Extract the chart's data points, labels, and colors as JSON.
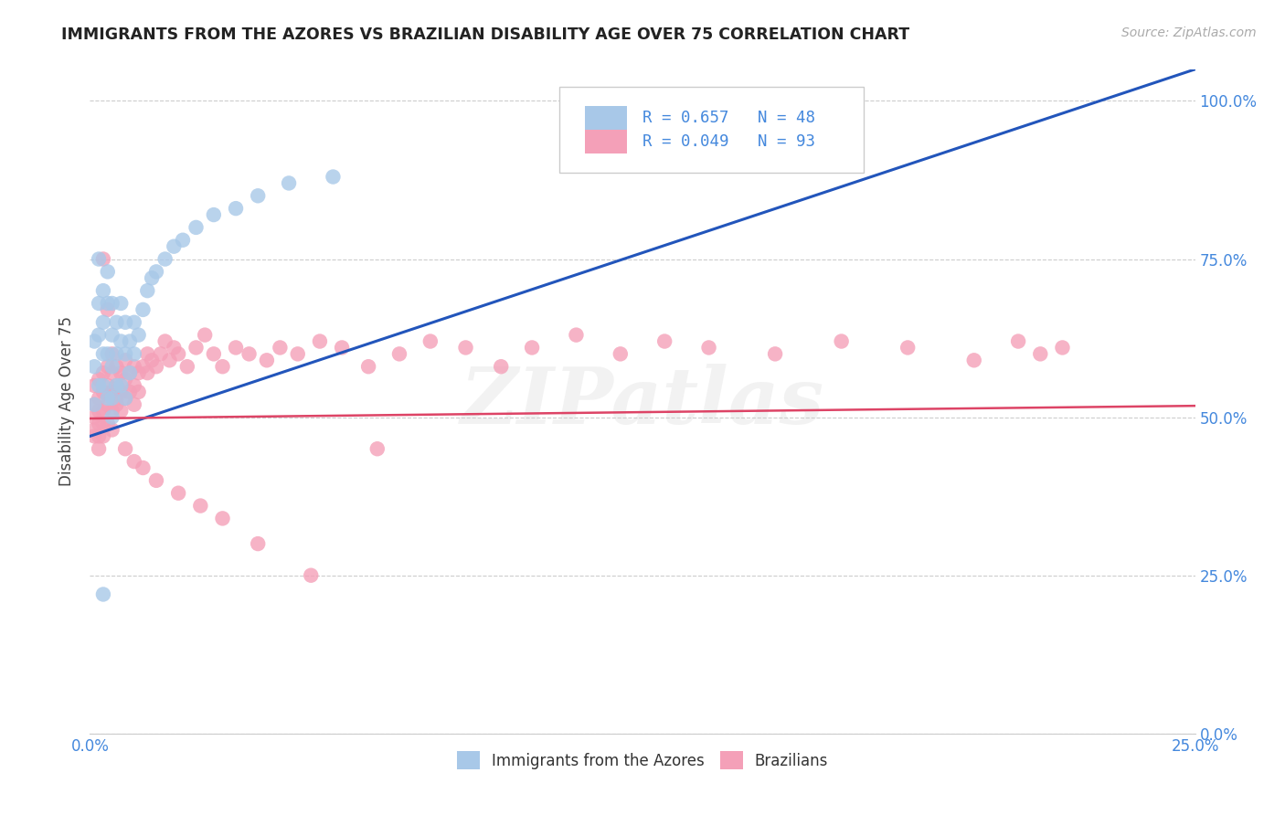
{
  "title": "IMMIGRANTS FROM THE AZORES VS BRAZILIAN DISABILITY AGE OVER 75 CORRELATION CHART",
  "source": "Source: ZipAtlas.com",
  "ylabel": "Disability Age Over 75",
  "legend_label1": "Immigrants from the Azores",
  "legend_label2": "Brazilians",
  "R1": 0.657,
  "N1": 48,
  "R2": 0.049,
  "N2": 93,
  "color1": "#a8c8e8",
  "color2": "#f4a0b8",
  "trendline1_color": "#2255bb",
  "trendline2_color": "#dd4466",
  "watermark": "ZIPatlas",
  "grid_color": "#cccccc",
  "title_color": "#222222",
  "axis_color": "#4488dd",
  "source_color": "#aaaaaa",
  "xlim": [
    0.0,
    0.25
  ],
  "ylim": [
    0.0,
    1.05
  ],
  "xtick_positions": [
    0.0,
    0.25
  ],
  "xtick_labels": [
    "0.0%",
    "25.0%"
  ],
  "ytick_positions": [
    0.0,
    0.25,
    0.5,
    0.75,
    1.0
  ],
  "ytick_labels": [
    "0.0%",
    "25.0%",
    "50.0%",
    "75.0%",
    "100.0%"
  ],
  "azores_x": [
    0.001,
    0.001,
    0.001,
    0.002,
    0.002,
    0.002,
    0.002,
    0.003,
    0.003,
    0.003,
    0.003,
    0.004,
    0.004,
    0.004,
    0.004,
    0.005,
    0.005,
    0.005,
    0.005,
    0.005,
    0.006,
    0.006,
    0.006,
    0.007,
    0.007,
    0.007,
    0.008,
    0.008,
    0.008,
    0.009,
    0.009,
    0.01,
    0.01,
    0.011,
    0.012,
    0.013,
    0.014,
    0.015,
    0.017,
    0.019,
    0.021,
    0.024,
    0.028,
    0.033,
    0.038,
    0.045,
    0.055,
    0.003
  ],
  "azores_y": [
    0.62,
    0.58,
    0.52,
    0.75,
    0.68,
    0.63,
    0.55,
    0.7,
    0.65,
    0.6,
    0.55,
    0.73,
    0.68,
    0.6,
    0.53,
    0.68,
    0.63,
    0.58,
    0.53,
    0.5,
    0.65,
    0.6,
    0.55,
    0.68,
    0.62,
    0.55,
    0.65,
    0.6,
    0.53,
    0.62,
    0.57,
    0.65,
    0.6,
    0.63,
    0.67,
    0.7,
    0.72,
    0.73,
    0.75,
    0.77,
    0.78,
    0.8,
    0.82,
    0.83,
    0.85,
    0.87,
    0.88,
    0.22
  ],
  "brazil_x": [
    0.001,
    0.001,
    0.001,
    0.001,
    0.001,
    0.002,
    0.002,
    0.002,
    0.002,
    0.002,
    0.002,
    0.003,
    0.003,
    0.003,
    0.003,
    0.003,
    0.004,
    0.004,
    0.004,
    0.004,
    0.005,
    0.005,
    0.005,
    0.005,
    0.005,
    0.006,
    0.006,
    0.006,
    0.007,
    0.007,
    0.007,
    0.008,
    0.008,
    0.008,
    0.009,
    0.009,
    0.01,
    0.01,
    0.01,
    0.011,
    0.011,
    0.012,
    0.013,
    0.013,
    0.014,
    0.015,
    0.016,
    0.017,
    0.018,
    0.019,
    0.02,
    0.022,
    0.024,
    0.026,
    0.028,
    0.03,
    0.033,
    0.036,
    0.04,
    0.043,
    0.047,
    0.052,
    0.057,
    0.063,
    0.07,
    0.077,
    0.085,
    0.093,
    0.1,
    0.11,
    0.12,
    0.13,
    0.14,
    0.155,
    0.17,
    0.185,
    0.2,
    0.21,
    0.215,
    0.22,
    0.003,
    0.004,
    0.006,
    0.008,
    0.01,
    0.012,
    0.015,
    0.02,
    0.025,
    0.03,
    0.038,
    0.05,
    0.065
  ],
  "brazil_y": [
    0.55,
    0.52,
    0.5,
    0.48,
    0.47,
    0.56,
    0.53,
    0.51,
    0.49,
    0.47,
    0.45,
    0.57,
    0.54,
    0.51,
    0.49,
    0.47,
    0.58,
    0.55,
    0.52,
    0.49,
    0.6,
    0.57,
    0.54,
    0.51,
    0.48,
    0.58,
    0.55,
    0.52,
    0.57,
    0.54,
    0.51,
    0.59,
    0.56,
    0.53,
    0.57,
    0.54,
    0.58,
    0.55,
    0.52,
    0.57,
    0.54,
    0.58,
    0.6,
    0.57,
    0.59,
    0.58,
    0.6,
    0.62,
    0.59,
    0.61,
    0.6,
    0.58,
    0.61,
    0.63,
    0.6,
    0.58,
    0.61,
    0.6,
    0.59,
    0.61,
    0.6,
    0.62,
    0.61,
    0.58,
    0.6,
    0.62,
    0.61,
    0.58,
    0.61,
    0.63,
    0.6,
    0.62,
    0.61,
    0.6,
    0.62,
    0.61,
    0.59,
    0.62,
    0.6,
    0.61,
    0.75,
    0.67,
    0.53,
    0.45,
    0.43,
    0.42,
    0.4,
    0.38,
    0.36,
    0.34,
    0.3,
    0.25,
    0.45
  ]
}
